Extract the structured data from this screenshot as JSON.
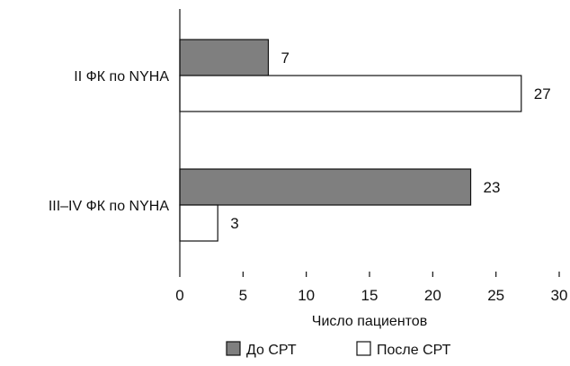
{
  "chart_data": {
    "type": "bar",
    "orientation": "horizontal",
    "categories": [
      "II ФК по NYHA",
      "III–IV ФК по NYHA"
    ],
    "series": [
      {
        "name": "До СРТ",
        "values": [
          7,
          23
        ],
        "color": "#7f7f7f"
      },
      {
        "name": "После СРТ",
        "values": [
          27,
          3
        ],
        "color": "#ffffff"
      }
    ],
    "xlabel": "Число пациентов",
    "ylabel": "",
    "xlim": [
      0,
      30
    ],
    "xticks": [
      "0",
      "5",
      "10",
      "15",
      "20",
      "25",
      "30"
    ],
    "grid": false,
    "legend_position": "bottom"
  }
}
